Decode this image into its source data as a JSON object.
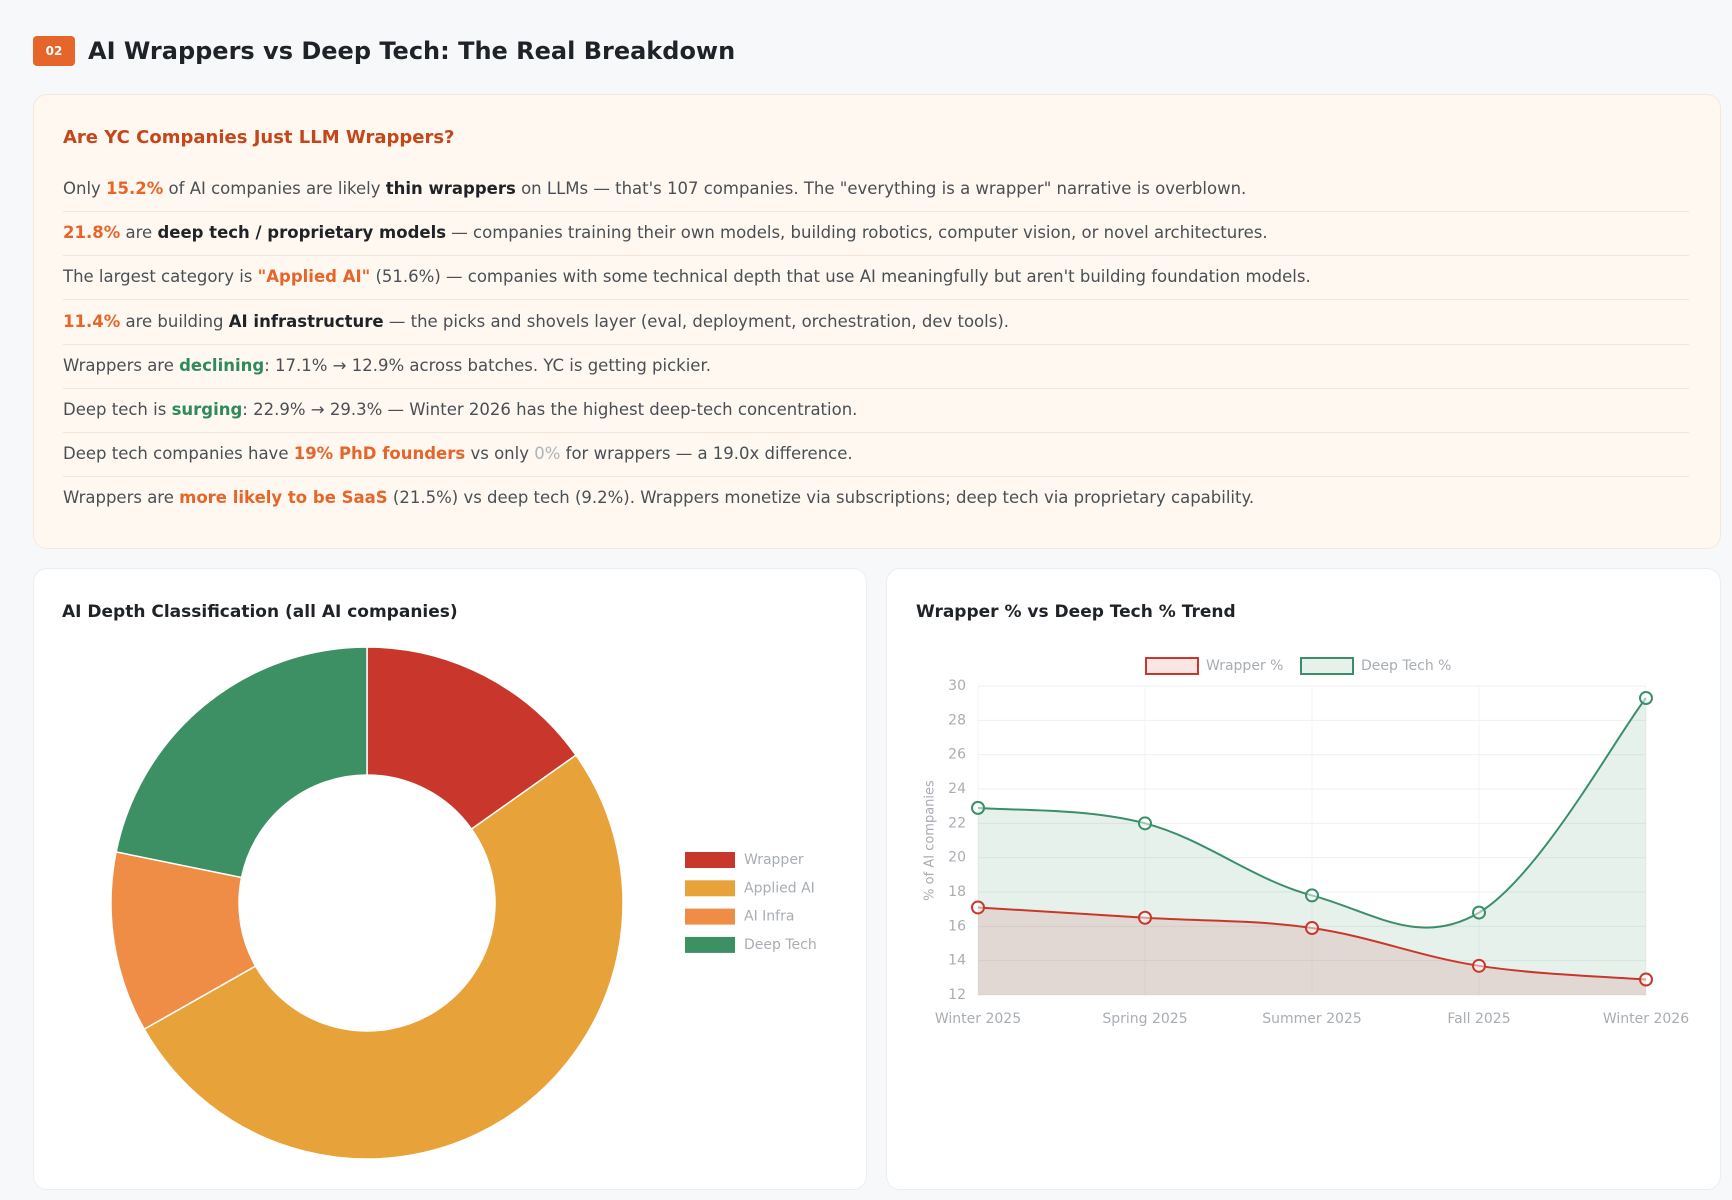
{
  "header": {
    "badge": "02",
    "title": "AI Wrappers vs Deep Tech: The Real Breakdown"
  },
  "insights": {
    "title": "Are YC Companies Just LLM Wrappers?",
    "lines": [
      [
        {
          "text": "Only ",
          "style": "plain"
        },
        {
          "text": "15.2%",
          "style": "accent"
        },
        {
          "text": " of AI companies are likely ",
          "style": "plain"
        },
        {
          "text": "thin wrappers",
          "style": "bold"
        },
        {
          "text": " on LLMs — that's 107 companies. The \"everything is a wrapper\" narrative is overblown.",
          "style": "plain"
        }
      ],
      [
        {
          "text": "21.8%",
          "style": "accent"
        },
        {
          "text": " are ",
          "style": "plain"
        },
        {
          "text": "deep tech / proprietary models",
          "style": "bold"
        },
        {
          "text": " — companies training their own models, building robotics, computer vision, or novel architectures.",
          "style": "plain"
        }
      ],
      [
        {
          "text": "The largest category is ",
          "style": "plain"
        },
        {
          "text": "\"Applied AI\"",
          "style": "accent"
        },
        {
          "text": " (51.6%) — companies with some technical depth that use AI meaningfully but aren't building foundation models.",
          "style": "plain"
        }
      ],
      [
        {
          "text": "11.4%",
          "style": "accent"
        },
        {
          "text": " are building ",
          "style": "plain"
        },
        {
          "text": "AI infrastructure",
          "style": "bold"
        },
        {
          "text": " — the picks and shovels layer (eval, deployment, orchestration, dev tools).",
          "style": "plain"
        }
      ],
      [
        {
          "text": "Wrappers are ",
          "style": "plain"
        },
        {
          "text": "declining",
          "style": "green"
        },
        {
          "text": ": 17.1% → 12.9% across batches. YC is getting pickier.",
          "style": "plain"
        }
      ],
      [
        {
          "text": "Deep tech is ",
          "style": "plain"
        },
        {
          "text": "surging",
          "style": "green"
        },
        {
          "text": ": 22.9% → 29.3% — Winter 2026 has the highest deep-tech concentration.",
          "style": "plain"
        }
      ],
      [
        {
          "text": "Deep tech companies have ",
          "style": "plain"
        },
        {
          "text": "19% PhD founders",
          "style": "accent"
        },
        {
          "text": " vs only ",
          "style": "plain"
        },
        {
          "text": "0%",
          "style": "muted"
        },
        {
          "text": " for wrappers — a 19.0x difference.",
          "style": "plain"
        }
      ],
      [
        {
          "text": "Wrappers are ",
          "style": "plain"
        },
        {
          "text": "more likely to be SaaS",
          "style": "accent"
        },
        {
          "text": " (21.5%) vs deep tech (9.2%). Wrappers monetize via subscriptions; deep tech via proprietary capability.",
          "style": "plain"
        }
      ]
    ]
  },
  "chart_data": [
    {
      "type": "doughnut",
      "title": "AI Depth Classification (all AI companies)",
      "categories": [
        "Wrapper",
        "Applied AI",
        "AI Infra",
        "Deep Tech"
      ],
      "values": [
        15.2,
        51.6,
        11.4,
        21.8
      ],
      "colors": [
        "#c9372c",
        "#e8a23a",
        "#ef8c45",
        "#3d8f64"
      ],
      "legend": "right"
    },
    {
      "type": "line",
      "title": "Wrapper % vs Deep Tech % Trend",
      "categories": [
        "Winter 2025",
        "Spring 2025",
        "Summer 2025",
        "Fall 2025",
        "Winter 2026"
      ],
      "series": [
        {
          "name": "Wrapper %",
          "color": "#c9372c",
          "values": [
            17.1,
            16.5,
            15.9,
            13.7,
            12.9
          ]
        },
        {
          "name": "Deep Tech %",
          "color": "#3a8f6a",
          "values": [
            22.9,
            22.0,
            17.8,
            16.8,
            29.3
          ]
        }
      ],
      "ylabel": "% of AI companies",
      "ylim": [
        12,
        30
      ],
      "yticks": [
        12,
        14,
        16,
        18,
        20,
        22,
        24,
        26,
        28,
        30
      ],
      "grid": true,
      "legend": "top",
      "fill": true
    }
  ]
}
